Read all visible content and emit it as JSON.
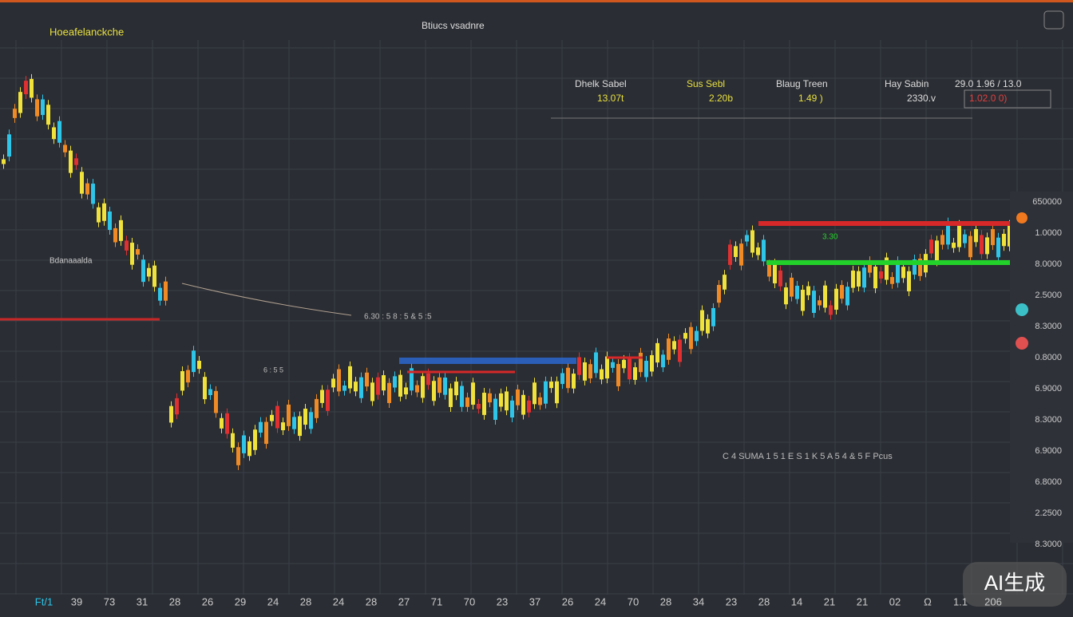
{
  "header": {
    "symbol": "Hoeafelanckche",
    "title": "Btiucs vsadnre"
  },
  "stats": [
    {
      "label": "Dhelk Sabel",
      "value": "13.07t"
    },
    {
      "label": "Sus Sebl",
      "value": "2.20b"
    },
    {
      "label": "Blaug Treen",
      "value": "1.49 )"
    },
    {
      "label": "Hay Sabin",
      "value": "2330.v"
    }
  ],
  "quote": {
    "top": "29.0 1.96 / 13.0",
    "box": "1.02.0 0)"
  },
  "annotations": {
    "left": "Bdanaaalda",
    "mid1": "6.30 : 5 8 : 5 & 5 :5",
    "mid2": "6 : 5 5",
    "mid3": "3.30",
    "row": "C 4 SUMA 1 5  1 E S 1 K 5 A 5 4 & 5     F Pcus"
  },
  "price_axis": [
    "650000",
    "1.0000",
    "8.0000",
    "2.5000",
    "8.3000",
    "0.8000",
    "6.9000",
    "8.3000",
    "6.9000",
    "6.8000",
    "2.2500",
    "8.3000"
  ],
  "time_axis": [
    "Ft/1",
    "39",
    "73",
    "31",
    "28",
    "26",
    "29",
    "24",
    "28",
    "24",
    "28",
    "27",
    "71",
    "70",
    "23",
    "37",
    "26",
    "24",
    "70",
    "28",
    "34",
    "23",
    "28",
    "14",
    "21",
    "21",
    "02",
    "Ω",
    "1.1",
    "206"
  ],
  "watermark": "AI生成"
}
